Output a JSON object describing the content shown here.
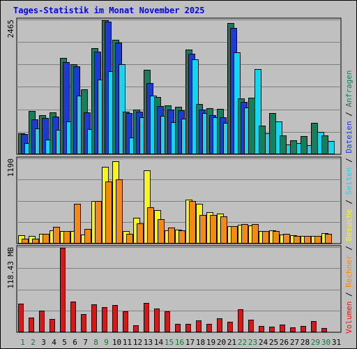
{
  "title": "Tages-Statistik im Monat November 2025",
  "colors": {
    "frame_bg": "#bfbfbf",
    "plot_bg": "#c0c0c0",
    "grid": "#808080",
    "anfragen": "#137f5b",
    "dateien": "#1a3cd6",
    "seiten": "#10d8f2",
    "besuche": "#f5f51a",
    "rechner": "#f58a11",
    "volumen": "#e01414",
    "title": "#0000ff",
    "weekend_label": "#117a38",
    "day_label": "#000000"
  },
  "legend": {
    "separator": "/",
    "right_upper": [
      "Volumen",
      "Rechner",
      "Besuche",
      "Seiten",
      "Dateien",
      "Anfragen"
    ]
  },
  "chart_data": [
    {
      "type": "bar",
      "panel": "hits",
      "max_label": "2465",
      "ylim": [
        0,
        2465
      ],
      "grid": true,
      "categories": [
        "1",
        "2",
        "3",
        "4",
        "5",
        "6",
        "7",
        "8",
        "9",
        "10",
        "11",
        "12",
        "13",
        "14",
        "15",
        "16",
        "17",
        "18",
        "19",
        "20",
        "21",
        "22",
        "23",
        "24",
        "25",
        "26",
        "27",
        "28",
        "29",
        "30",
        "31"
      ],
      "series": [
        {
          "name": "Anfragen",
          "values": [
            390,
            800,
            720,
            770,
            1770,
            1650,
            1200,
            1950,
            2465,
            2100,
            780,
            820,
            1550,
            1050,
            900,
            870,
            1930,
            930,
            850,
            840,
            2410,
            1030,
            1040,
            520,
            760,
            350,
            260,
            330,
            580,
            350,
            null
          ]
        },
        {
          "name": "Dateien",
          "values": [
            370,
            640,
            670,
            690,
            1700,
            1620,
            770,
            1890,
            2440,
            2060,
            760,
            780,
            1310,
            880,
            820,
            810,
            1850,
            820,
            720,
            680,
            2330,
            960,
            null,
            null,
            null,
            null,
            null,
            null,
            null,
            null,
            null
          ]
        },
        {
          "name": "Seiten",
          "values": [
            200,
            480,
            270,
            450,
            600,
            1080,
            460,
            1370,
            1530,
            1660,
            310,
            680,
            1080,
            710,
            590,
            660,
            1750,
            760,
            680,
            580,
            1870,
            860,
            1560,
            390,
            600,
            180,
            200,
            170,
            410,
            250,
            null
          ]
        }
      ]
    },
    {
      "type": "bar",
      "panel": "visits",
      "max_label": "1190",
      "ylim": [
        0,
        1190
      ],
      "grid": true,
      "categories": [
        "1",
        "2",
        "3",
        "4",
        "5",
        "6",
        "7",
        "8",
        "9",
        "10",
        "11",
        "12",
        "13",
        "14",
        "15",
        "16",
        "17",
        "18",
        "19",
        "20",
        "21",
        "22",
        "23",
        "24",
        "25",
        "26",
        "27",
        "28",
        "29",
        "30",
        "31"
      ],
      "series": [
        {
          "name": "Besuche",
          "values": [
            120,
            110,
            140,
            190,
            180,
            180,
            130,
            600,
            1080,
            1160,
            180,
            360,
            1030,
            470,
            190,
            200,
            620,
            560,
            440,
            420,
            250,
            270,
            260,
            180,
            190,
            130,
            120,
            110,
            110,
            150,
            null
          ]
        },
        {
          "name": "Rechner",
          "values": [
            70,
            70,
            140,
            240,
            180,
            560,
            210,
            600,
            880,
            900,
            140,
            290,
            510,
            340,
            230,
            190,
            600,
            400,
            400,
            380,
            250,
            280,
            280,
            180,
            180,
            140,
            110,
            110,
            110,
            140,
            null
          ]
        }
      ]
    },
    {
      "type": "bar",
      "panel": "volume",
      "max_label": "118.43 MB",
      "ylim": [
        0,
        118.43
      ],
      "grid": true,
      "categories": [
        "1",
        "2",
        "3",
        "4",
        "5",
        "6",
        "7",
        "8",
        "9",
        "10",
        "11",
        "12",
        "13",
        "14",
        "15",
        "16",
        "17",
        "18",
        "19",
        "20",
        "21",
        "22",
        "23",
        "24",
        "25",
        "26",
        "27",
        "28",
        "29",
        "30",
        "31"
      ],
      "weekend_days": [
        "1",
        "2",
        "8",
        "9",
        "15",
        "16",
        "22",
        "23",
        "29",
        "30"
      ],
      "series": [
        {
          "name": "Volumen",
          "values": [
            40,
            21,
            30,
            19,
            118,
            43,
            25,
            39,
            35,
            38,
            29,
            10,
            41,
            33,
            29,
            12,
            12,
            17,
            12,
            20,
            15,
            32,
            18,
            9,
            8,
            11,
            7,
            9,
            16,
            6,
            null
          ]
        }
      ]
    }
  ]
}
